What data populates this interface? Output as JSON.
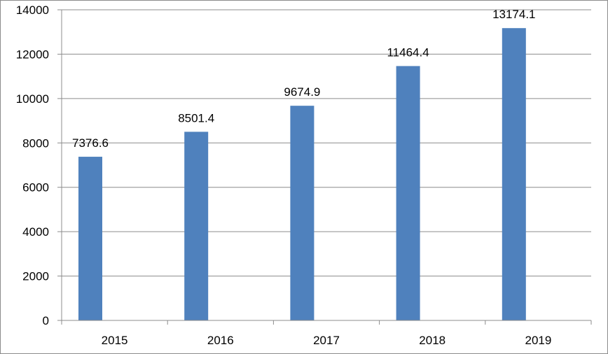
{
  "chart_data": {
    "type": "bar",
    "title": "",
    "xlabel": "",
    "ylabel": "",
    "categories": [
      "2015",
      "2016",
      "2017",
      "2018",
      "2019"
    ],
    "series": [
      {
        "values": [
          7376.6,
          8501.4,
          9674.9,
          11464.4,
          13174.1
        ],
        "color": "#4f81bd"
      }
    ],
    "data_labels": [
      "7376.6",
      "8501.4",
      "9674.9",
      "11464.4",
      "13174.1"
    ],
    "ylim": [
      0,
      14000
    ],
    "yticks": [
      0,
      2000,
      4000,
      6000,
      8000,
      10000,
      12000,
      14000
    ],
    "grid": "horizontal",
    "legend": "none"
  }
}
